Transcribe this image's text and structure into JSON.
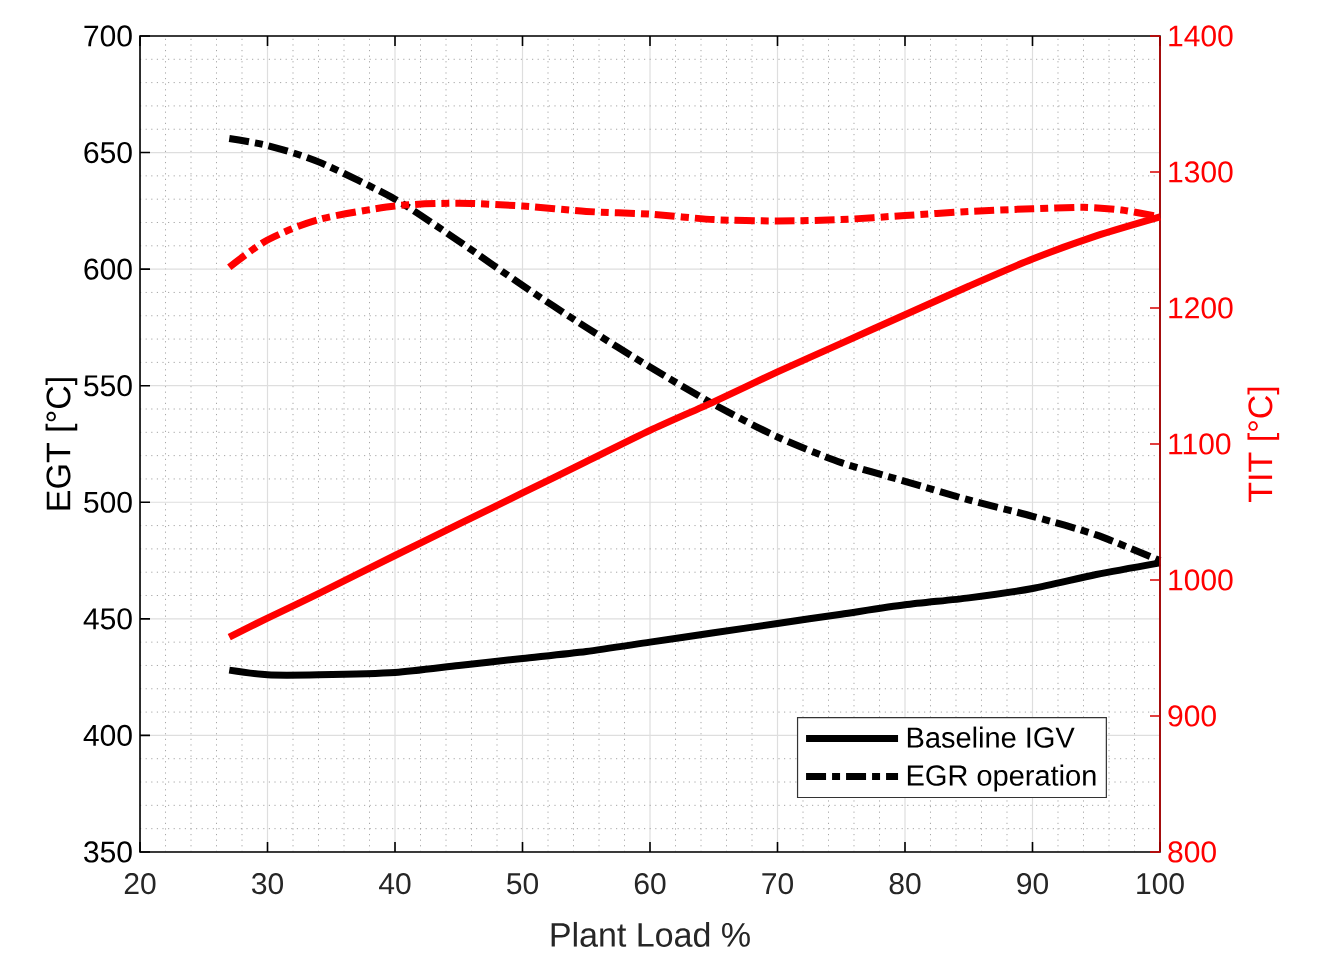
{
  "chart_data": {
    "type": "line",
    "xlabel": "Plant Load %",
    "ylabel": "EGT [°C]",
    "y2label": "TIT [°C]",
    "xlim": [
      20,
      100
    ],
    "xticks": [
      20,
      30,
      40,
      50,
      60,
      70,
      80,
      90,
      100
    ],
    "ylim": [
      350,
      700
    ],
    "yticks": [
      350,
      400,
      450,
      500,
      550,
      600,
      650,
      700
    ],
    "y2lim": [
      800,
      1400
    ],
    "y2ticks": [
      800,
      900,
      1000,
      1100,
      1200,
      1300,
      1400
    ],
    "grid": true,
    "legend": "bottom right",
    "marker": "none",
    "series": [
      {
        "name": "Baseline IGV",
        "color": "#000000",
        "line_style": "solid",
        "axis": "y",
        "x": [
          27,
          30,
          34,
          40,
          45,
          50,
          55,
          60,
          65,
          70,
          75,
          80,
          85,
          90,
          95,
          100
        ],
        "values": [
          428,
          426,
          426,
          427,
          430,
          433,
          436,
          440,
          444,
          448,
          452,
          456,
          459,
          463,
          469,
          474
        ]
      },
      {
        "name": "EGR operation",
        "color": "#000000",
        "line_style": "dashed",
        "axis": "y",
        "x": [
          27,
          30,
          34,
          40,
          45,
          50,
          55,
          60,
          65,
          70,
          75,
          80,
          85,
          90,
          95,
          100
        ],
        "values": [
          656,
          653,
          646,
          630,
          612,
          593,
          575,
          558,
          542,
          528,
          517,
          509,
          501,
          494,
          486,
          475
        ]
      },
      {
        "color": "#ff0000",
        "line_style": "solid",
        "axis": "y2",
        "x": [
          27,
          30,
          34,
          40,
          45,
          50,
          55,
          60,
          65,
          70,
          75,
          80,
          85,
          90,
          95,
          100
        ],
        "values": [
          958,
          972,
          990,
          1018,
          1041,
          1064,
          1087,
          1110,
          1131,
          1153,
          1174,
          1195,
          1216,
          1236,
          1253,
          1267
        ]
      },
      {
        "color": "#ff0000",
        "line_style": "dashed",
        "axis": "y2",
        "x": [
          27,
          30,
          34,
          40,
          45,
          50,
          55,
          60,
          65,
          70,
          75,
          80,
          85,
          90,
          94,
          97,
          100
        ],
        "values": [
          1230,
          1250,
          1265,
          1275,
          1277,
          1275,
          1271,
          1269,
          1265,
          1264,
          1265,
          1268,
          1271,
          1273,
          1274,
          1272,
          1267
        ]
      }
    ]
  }
}
